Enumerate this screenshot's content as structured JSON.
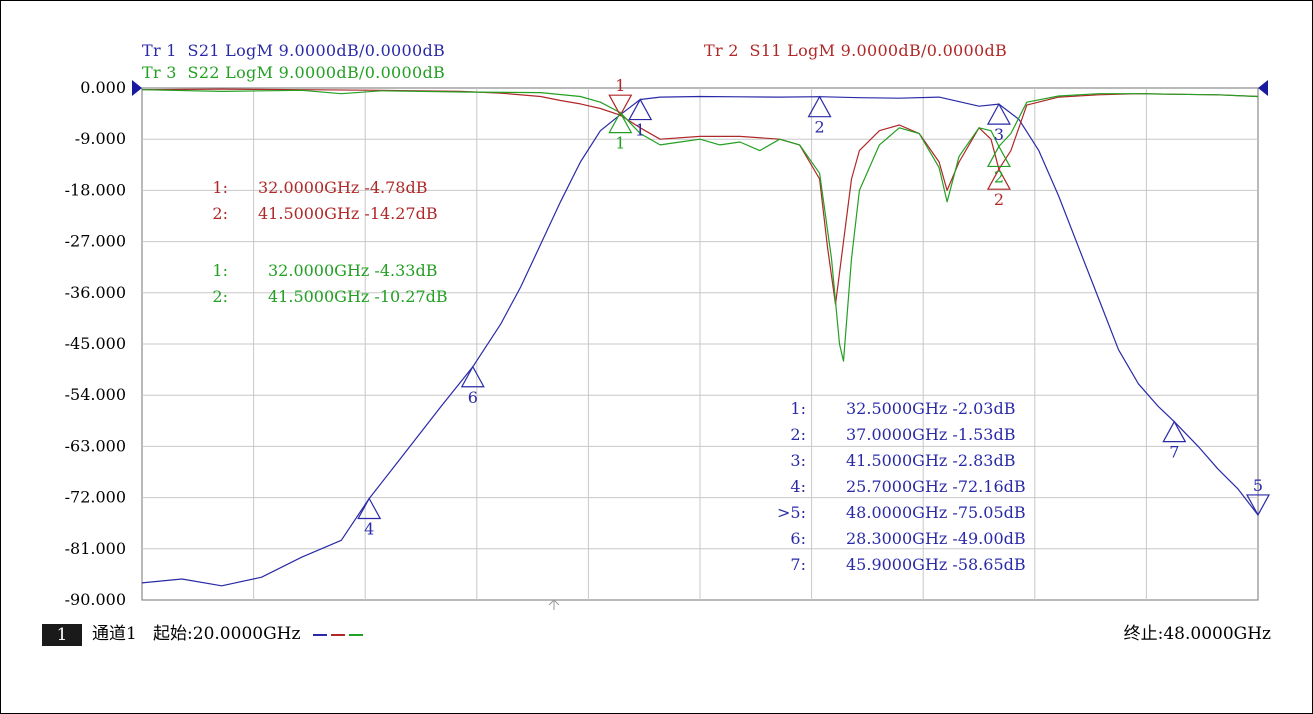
{
  "traces": [
    {
      "label": "Tr 1",
      "param": "S21",
      "format": "LogM",
      "scale": "9.0000dB/0.0000dB",
      "color": "#2a2aa8"
    },
    {
      "label": "Tr 2",
      "param": "S11",
      "format": "LogM",
      "scale": "9.0000dB/0.0000dB",
      "color": "#b02828"
    },
    {
      "label": "Tr 3",
      "param": "S22",
      "format": "LogM",
      "scale": "9.0000dB/0.0000dB",
      "color": "#22a022"
    }
  ],
  "footer": {
    "channel_num": "1",
    "channel_label": "通道1",
    "start": "起始:20.0000GHz",
    "stop": "终止:48.0000GHz"
  },
  "chart_data": {
    "type": "line",
    "xlim": [
      20,
      48
    ],
    "ylim": [
      -90,
      0
    ],
    "y_ticks": [
      "0.000",
      "-9.000",
      "-18.000",
      "-27.000",
      "-36.000",
      "-45.000",
      "-54.000",
      "-63.000",
      "-72.000",
      "-81.000",
      "-90.000"
    ],
    "x_divisions": 10,
    "grid": true,
    "series": [
      {
        "name": "S21",
        "color": "#2a2aa8",
        "x": [
          20,
          21,
          22,
          23,
          24,
          25,
          25.7,
          26.5,
          27.5,
          28.3,
          29,
          29.5,
          30,
          30.5,
          31,
          31.5,
          32,
          32.5,
          33,
          34,
          35,
          36,
          37,
          38,
          39,
          40,
          41,
          41.5,
          42,
          42.5,
          43,
          43.5,
          44,
          44.5,
          45,
          45.5,
          45.9,
          46.5,
          47,
          47.5,
          48
        ],
        "y": [
          -87,
          -86.3,
          -87.5,
          -86,
          -82.5,
          -79.5,
          -72.16,
          -65,
          -56,
          -49,
          -41.5,
          -35,
          -27.5,
          -20,
          -13,
          -7.5,
          -4.7,
          -2.03,
          -1.6,
          -1.5,
          -1.55,
          -1.6,
          -1.53,
          -1.7,
          -1.8,
          -1.6,
          -3.2,
          -2.83,
          -5.5,
          -11,
          -19,
          -28,
          -37,
          -46,
          -52,
          -56,
          -58.65,
          -63,
          -67,
          -70.5,
          -75.05
        ]
      },
      {
        "name": "S11",
        "color": "#b02828",
        "x": [
          20,
          22,
          24,
          26,
          28,
          29,
          30,
          30.5,
          31,
          31.5,
          32,
          32.5,
          33,
          34,
          35,
          36,
          36.5,
          37,
          37.2,
          37.4,
          37.6,
          37.8,
          38,
          38.5,
          39,
          39.5,
          40,
          40.2,
          40.5,
          41,
          41.3,
          41.5,
          41.8,
          42.2,
          43,
          44,
          45,
          46,
          47,
          48
        ],
        "y": [
          -0.3,
          -0.2,
          -0.3,
          -0.4,
          -0.6,
          -0.9,
          -1.5,
          -2.2,
          -2.8,
          -3.6,
          -4.78,
          -7,
          -9,
          -8.5,
          -8.5,
          -9,
          -10,
          -16,
          -28,
          -38,
          -27,
          -16,
          -11,
          -7.5,
          -6.5,
          -8,
          -13,
          -18,
          -13,
          -7,
          -9,
          -14.27,
          -11,
          -3,
          -1.6,
          -1.2,
          -1.0,
          -1.1,
          -1.2,
          -1.5
        ]
      },
      {
        "name": "S22",
        "color": "#22a022",
        "x": [
          20,
          22,
          24,
          25,
          26,
          28,
          30,
          31,
          31.5,
          32,
          32.5,
          33,
          33.5,
          34,
          34.5,
          35,
          35.5,
          36,
          36.5,
          37,
          37.1,
          37.3,
          37.5,
          37.6,
          37.8,
          38,
          38.5,
          39,
          39.5,
          40,
          40.2,
          40.5,
          41,
          41.3,
          41.5,
          41.8,
          42.2,
          43,
          44,
          45,
          46,
          47,
          48
        ],
        "y": [
          -0.3,
          -0.6,
          -0.4,
          -1.0,
          -0.5,
          -0.7,
          -0.8,
          -1.5,
          -2.5,
          -4.33,
          -8,
          -10,
          -9.5,
          -9,
          -10,
          -9.5,
          -11,
          -9,
          -10,
          -15,
          -20,
          -30,
          -45,
          -48,
          -30,
          -18,
          -10,
          -7,
          -8,
          -14,
          -20,
          -12,
          -7,
          -7.5,
          -10.27,
          -8,
          -2.5,
          -1.4,
          -1.0,
          -1.0,
          -1.1,
          -1.2,
          -1.5
        ]
      }
    ],
    "markers": [
      {
        "trace": "S21",
        "id": "1",
        "x": 32.5,
        "y": -2.03,
        "dir": "up"
      },
      {
        "trace": "S21",
        "id": "2",
        "x": 37.0,
        "y": -1.53,
        "dir": "up"
      },
      {
        "trace": "S21",
        "id": "3",
        "x": 41.5,
        "y": -2.83,
        "dir": "up"
      },
      {
        "trace": "S21",
        "id": "4",
        "x": 25.7,
        "y": -72.16,
        "dir": "up"
      },
      {
        "trace": "S21",
        "id": "5",
        "x": 48.0,
        "y": -75.05,
        "dir": "down"
      },
      {
        "trace": "S21",
        "id": "6",
        "x": 28.3,
        "y": -49.0,
        "dir": "up"
      },
      {
        "trace": "S21",
        "id": "7",
        "x": 45.9,
        "y": -58.65,
        "dir": "up"
      },
      {
        "trace": "S11",
        "id": "1",
        "x": 32.0,
        "y": -4.78,
        "dir": "down"
      },
      {
        "trace": "S11",
        "id": "2",
        "x": 41.5,
        "y": -14.27,
        "dir": "up"
      },
      {
        "trace": "S22",
        "id": "1",
        "x": 32.0,
        "y": -4.33,
        "dir": "up"
      },
      {
        "trace": "S22",
        "id": "2",
        "x": 41.5,
        "y": -10.27,
        "dir": "up"
      }
    ],
    "readouts": {
      "S11": [
        {
          "id": "1:",
          "freq": "32.0000GHz",
          "val": "-4.78dB"
        },
        {
          "id": "2:",
          "freq": "41.5000GHz",
          "val": "-14.27dB"
        }
      ],
      "S22": [
        {
          "id": "1:",
          "freq": "32.0000GHz",
          "val": "-4.33dB"
        },
        {
          "id": "2:",
          "freq": "41.5000GHz",
          "val": "-10.27dB"
        }
      ],
      "S21": [
        {
          "id": "1:",
          "freq": "32.5000GHz",
          "val": "-2.03dB"
        },
        {
          "id": "2:",
          "freq": "37.0000GHz",
          "val": "-1.53dB"
        },
        {
          "id": "3:",
          "freq": "41.5000GHz",
          "val": "-2.83dB"
        },
        {
          "id": "4:",
          "freq": "25.7000GHz",
          "val": "-72.16dB"
        },
        {
          "id": ">5:",
          "freq": "48.0000GHz",
          "val": "-75.05dB"
        },
        {
          "id": "6:",
          "freq": "28.3000GHz",
          "val": "-49.00dB"
        },
        {
          "id": "7:",
          "freq": "45.9000GHz",
          "val": "-58.65dB"
        }
      ]
    }
  }
}
